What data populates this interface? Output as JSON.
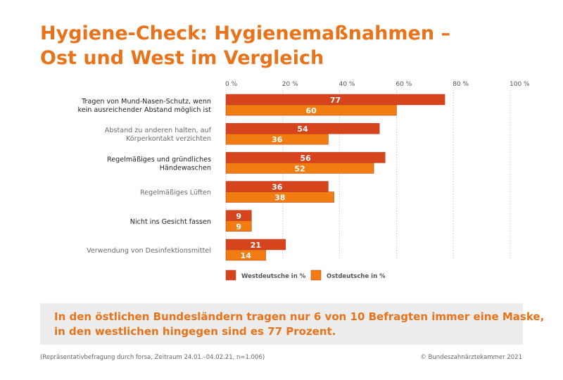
{
  "title": {
    "line1": "Hygiene-Check: Hygienemaßnahmen –",
    "line2": "Ost und West im Vergleich"
  },
  "colors": {
    "title": "#e8731a",
    "west": "#d5441d",
    "ost": "#f07c12",
    "callout_bg": "#ededed",
    "grid": "#bfbfbf"
  },
  "chart_data": {
    "type": "bar",
    "orientation": "horizontal",
    "categories": [
      [
        "Tragen von Mund-Nasen-Schutz, wenn",
        "kein ausreichender Abstand möglich ist"
      ],
      [
        "Abstand zu anderen halten, auf",
        "Körperkontakt verzichten"
      ],
      [
        "Regelmäßiges und gründliches",
        "Händewaschen"
      ],
      [
        "Regelmäßiges Lüften"
      ],
      [
        "Nicht ins Gesicht fassen"
      ],
      [
        "Verwendung von Desinfektionsmittel"
      ]
    ],
    "category_emphasis": [
      true,
      false,
      true,
      false,
      true,
      false
    ],
    "series": [
      {
        "name": "Westdeutsche in %",
        "color": "#d5441d",
        "values": [
          77,
          54,
          56,
          36,
          9,
          21
        ]
      },
      {
        "name": "Ostdeutsche in %",
        "color": "#f07c12",
        "values": [
          60,
          36,
          52,
          38,
          9,
          14
        ]
      }
    ],
    "xlim": [
      0,
      100
    ],
    "ticks": [
      0,
      20,
      40,
      60,
      80,
      100
    ],
    "tick_labels": [
      "0 %",
      "20 %",
      "40 %",
      "60 %",
      "80 %",
      "100 %"
    ],
    "grid": true,
    "legend_position": "bottom"
  },
  "callout": {
    "line1": "In den östlichen Bundesländern tragen nur 6 von 10 Befragten immer eine Maske,",
    "line2": "in den westlichen hingegen sind es 77 Prozent."
  },
  "footer": {
    "source": "(Repräsentativbefragung durch forsa, Zeitraum 24.01.–04.02.21, n=1.006)",
    "copyright": "© Bundeszahnärztekammer 2021"
  }
}
